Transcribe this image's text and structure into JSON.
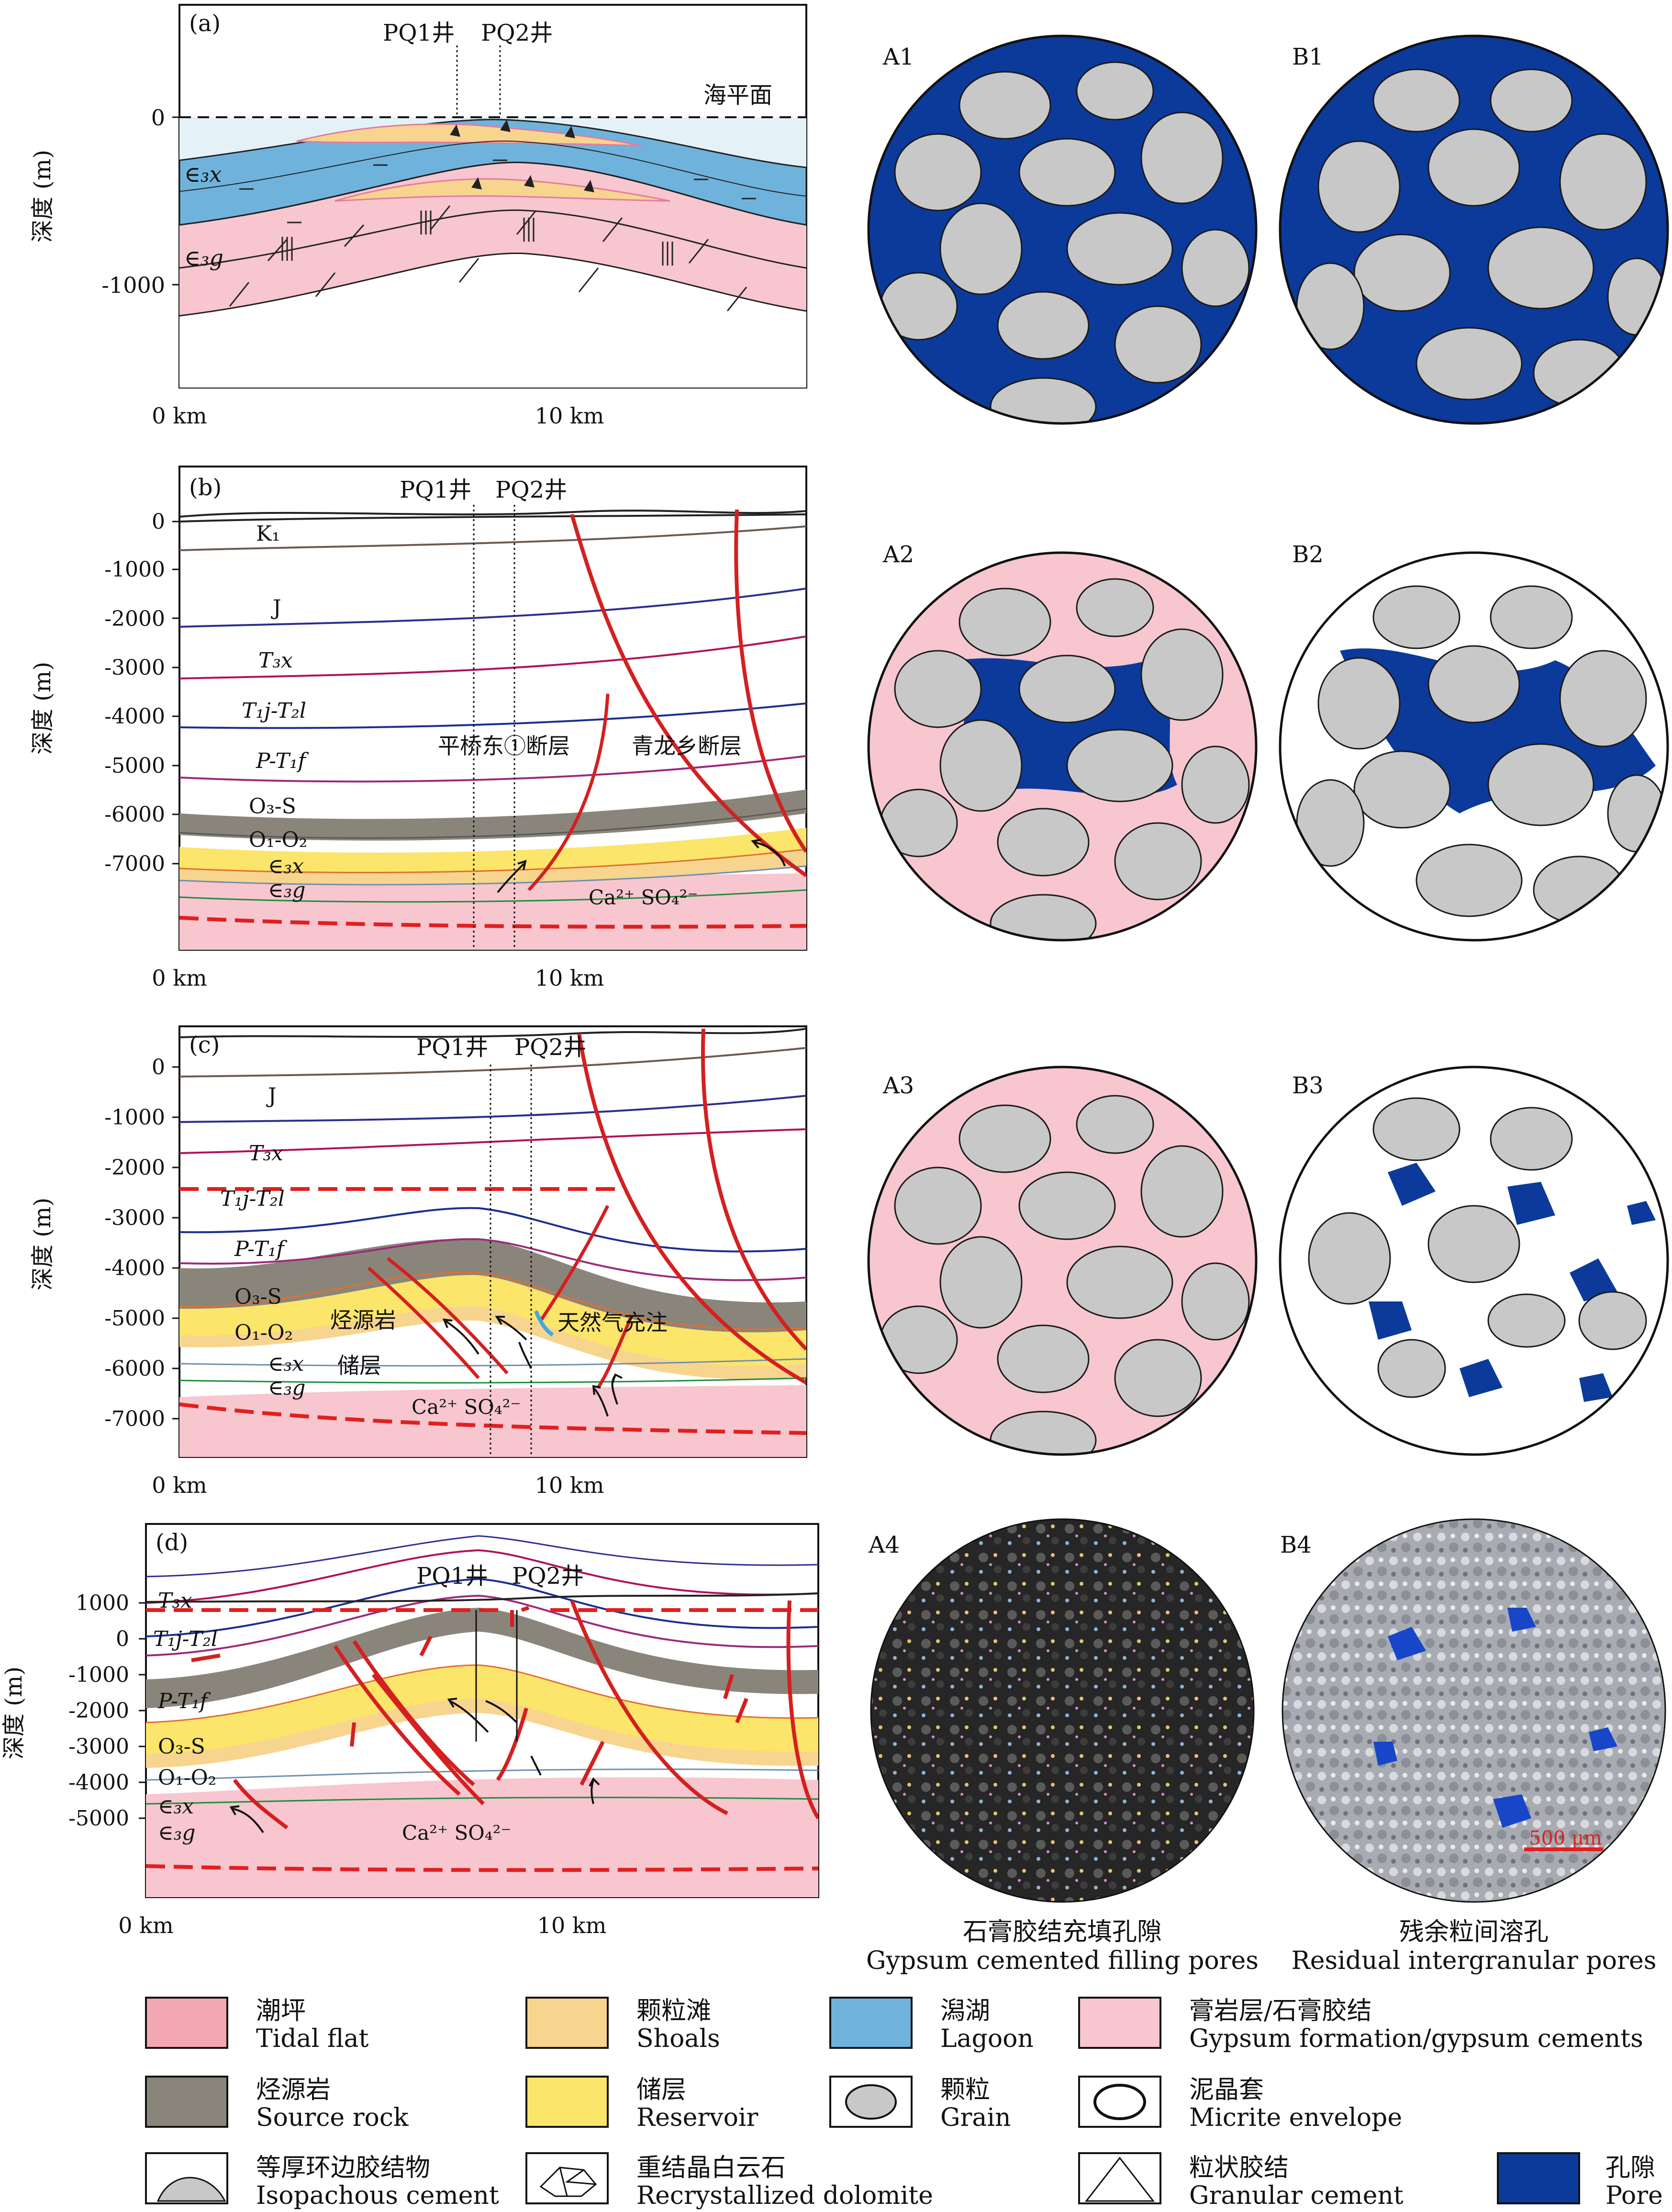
{
  "panel_a": {
    "tag": "(a)",
    "well1": "PQ1井",
    "well2": "PQ2井",
    "sea_level": "海平面",
    "y_title": "深度 (m)",
    "y_ticks": [
      "0",
      "-1000"
    ],
    "x_ticks": [
      "0 km",
      "10 km"
    ],
    "unit_x": "∈₃x",
    "unit_g": "∈₃g"
  },
  "panel_b": {
    "tag": "(b)",
    "well1": "PQ1井",
    "well2": "PQ2井",
    "y_title": "深度 (m)",
    "y_ticks": [
      "0",
      "-1000",
      "-2000",
      "-3000",
      "-4000",
      "-5000",
      "-6000",
      "-7000"
    ],
    "x_ticks": [
      "0 km",
      "10 km"
    ],
    "layers": [
      "K₁",
      "J",
      "T₃x",
      "T₁j-T₂l",
      "P-T₁f",
      "O₃-S",
      "O₁-O₂",
      "∈₃x",
      "∈₃g"
    ],
    "fault1": "平桥东①断层",
    "fault2": "青龙乡断层",
    "ions": "Ca²⁺    SO₄²⁻"
  },
  "panel_c": {
    "tag": "(c)",
    "well1": "PQ1井",
    "well2": "PQ2井",
    "y_title": "深度 (m)",
    "y_ticks": [
      "0",
      "-1000",
      "-2000",
      "-3000",
      "-4000",
      "-5000",
      "-6000",
      "-7000"
    ],
    "x_ticks": [
      "0 km",
      "10 km"
    ],
    "layers": [
      "J",
      "T₃x",
      "T₁j-T₂l",
      "P-T₁f",
      "O₃-S",
      "O₁-O₂",
      "∈₃x",
      "∈₃g"
    ],
    "source_label": "烃源岩",
    "reservoir_label": "储层",
    "gas_label": "天然气充注",
    "ions": "Ca²⁺ SO₄²⁻"
  },
  "panel_d": {
    "tag": "(d)",
    "well1": "PQ1井",
    "well2": "PQ2井",
    "y_title": "深度 (m)",
    "y_ticks": [
      "1000",
      "0",
      "-1000",
      "-2000",
      "-3000",
      "-4000",
      "-5000"
    ],
    "x_ticks": [
      "0 km",
      "10 km"
    ],
    "layers": [
      "T₃x",
      "T₁j-T₂l",
      "P-T₁f",
      "O₃-S",
      "O₁-O₂",
      "∈₃x",
      "∈₃g"
    ],
    "ions": "Ca²⁺    SO₄²⁻"
  },
  "thin_sections": {
    "A1": "A1",
    "B1": "B1",
    "A2": "A2",
    "B2": "B2",
    "A3": "A3",
    "B3": "B3",
    "A4": "A4",
    "B4": "B4",
    "scale": "500 μm",
    "cap_a_cn": "石膏胶结充填孔隙",
    "cap_a_en": "Gypsum cemented filling pores",
    "cap_b_cn": "残余粒间溶孔",
    "cap_b_en": "Residual intergranular pores"
  },
  "legend": [
    {
      "cn": "潮坪",
      "en": "Tidal flat",
      "color": "#f2a7b3"
    },
    {
      "cn": "颗粒滩",
      "en": "Shoals",
      "color": "#f7d58f"
    },
    {
      "cn": "潟湖",
      "en": "Lagoon",
      "color": "#6fb3dc"
    },
    {
      "cn": "膏岩层/石膏胶结",
      "en": "Gypsum formation/gypsum cements",
      "color": "#f7c6cf"
    },
    {
      "cn": "烃源岩",
      "en": "Source rock",
      "color": "#8a857a"
    },
    {
      "cn": "储层",
      "en": "Reservoir",
      "color": "#fbe56a"
    },
    {
      "cn": "颗粒",
      "en": "Grain",
      "color": "#c8c8c8"
    },
    {
      "cn": "泥晶套",
      "en": "Micrite envelope",
      "color": "#ffffff"
    },
    {
      "cn": "等厚环边胶结物",
      "en": "Isopachous cement",
      "color": "#c8c8c8"
    },
    {
      "cn": "重结晶白云石",
      "en": "Recrystallized dolomite",
      "color": "#ffffff"
    },
    {
      "cn": "粒状胶结",
      "en": "Granular cement",
      "color": "#ffffff"
    },
    {
      "cn": "孔隙",
      "en": "Pore",
      "color": "#0b3a9b"
    }
  ]
}
